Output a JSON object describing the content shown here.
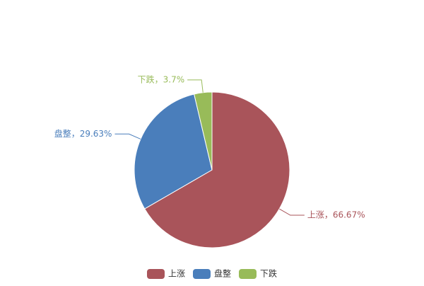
{
  "chart_data": {
    "type": "pie",
    "categories": [
      "上涨",
      "盘整",
      "下跌"
    ],
    "values": [
      66.67,
      29.63,
      3.7
    ],
    "value_labels": [
      "上涨，66.67%",
      "盘整，29.63%",
      "下跌，3.7%"
    ],
    "colors": [
      "#a9545a",
      "#4a7ebb",
      "#98bb59"
    ],
    "legend": "bottom"
  }
}
